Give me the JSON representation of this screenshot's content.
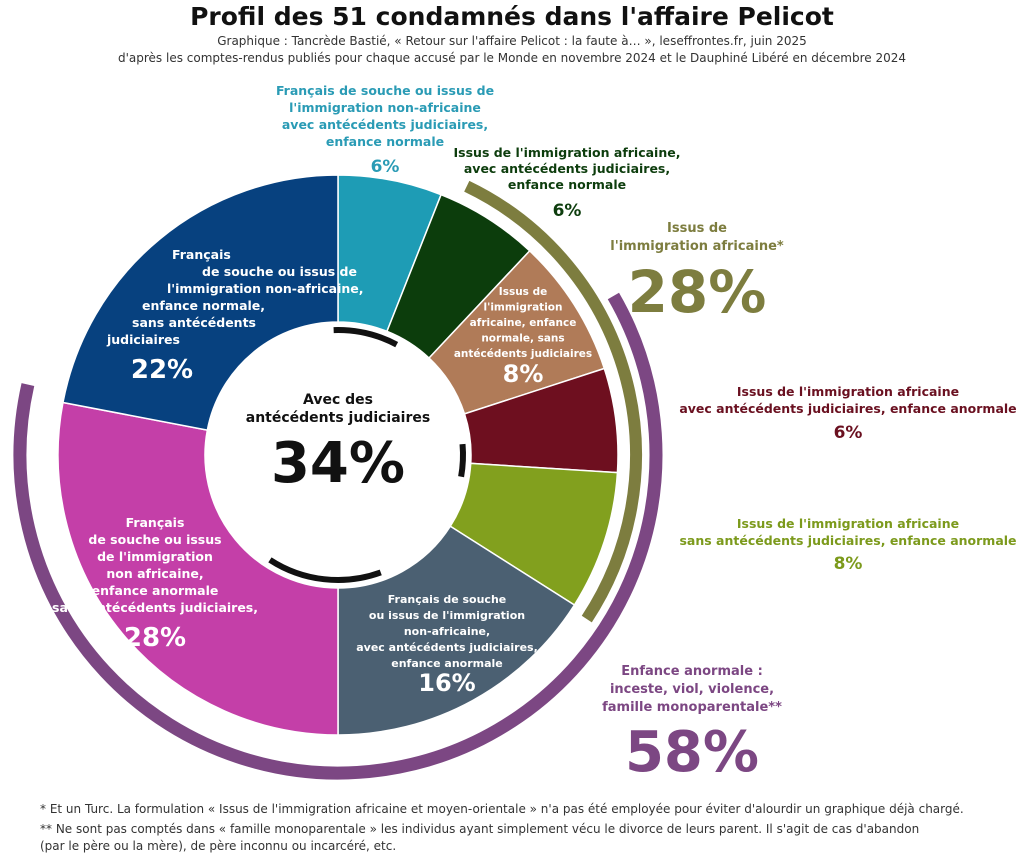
{
  "header": {
    "title": "Profil des 51 condamnés dans l'affaire Pelicot",
    "subtitle_1": "Graphique : Tancrède Bastié, « Retour sur l'affaire Pelicot : la faute à… », leseffrontes.fr, juin 2025",
    "subtitle_2": "d'après les comptes-rendus publiés pour chaque accusé par le Monde en novembre 2024 et le Dauphiné Libéré en décembre 2024"
  },
  "chart_data": {
    "type": "pie",
    "variant": "donut",
    "start_angle_deg": 0,
    "direction": "clockwise",
    "slices": [
      {
        "label": "Français de souche ou issus de l'immigration non-africaine avec antécédents judiciaires, enfance normale",
        "label_lines": [
          "Français de souche ou issus de",
          "l'immigration non-africaine",
          "avec antécédents judiciaires,",
          "enfance normale"
        ],
        "value": 6,
        "value_label": "6%",
        "color": "#1e9cb5"
      },
      {
        "label": "Issus de l'immigration africaine, avec antécédents judiciaires, enfance normale",
        "label_lines": [
          "Issus de l'immigration africaine,",
          "avec antécédents judiciaires,",
          "enfance normale"
        ],
        "value": 6,
        "value_label": "6%",
        "color": "#0c3d0c"
      },
      {
        "label": "Issus de l'immigration africaine, enfance normale, sans antécédents judiciaires",
        "label_lines": [
          "Issus de",
          "l'immigration",
          "africaine, enfance",
          "normale, sans",
          "antécédents judiciaires"
        ],
        "value": 8,
        "value_label": "8%",
        "color": "#b07b58"
      },
      {
        "label": "Issus de l'immigration africaine avec antécédents judiciaires, enfance anormale",
        "label_lines": [
          "Issus de l'immigration africaine",
          "avec antécédents judiciaires, enfance anormale"
        ],
        "value": 6,
        "value_label": "6%",
        "color": "#6e0f1f"
      },
      {
        "label": "Issus de l'immigration africaine sans antécédents judiciaires, enfance anormale",
        "label_lines": [
          "Issus de l'immigration africaine",
          "sans antécédents judiciaires, enfance anormale"
        ],
        "value": 8,
        "value_label": "8%",
        "color": "#82a01e"
      },
      {
        "label": "Français de souche ou issus de l'immigration non-africaine, avec antécédents judiciaires, enfance anormale",
        "label_lines": [
          "Français de souche",
          "ou issus de l'immigration",
          "non-africaine,",
          "avec antécédents judiciaires,",
          "enfance anormale"
        ],
        "value": 16,
        "value_label": "16%",
        "color": "#4b6072"
      },
      {
        "label": "Français de souche ou issus de l'immigration non africaine, enfance anormale sans antécédents judiciaires,",
        "label_lines": [
          "Français",
          "de souche ou issus",
          "de l'immigration",
          "non africaine,",
          "enfance anormale",
          "sans antécédents judiciaires,"
        ],
        "value": 28,
        "value_label": "28%",
        "color": "#c43fa8"
      },
      {
        "label": "Français de souche ou issus de l'immigration non-africaine, enfance normale, sans antécédents judiciaires",
        "label_lines": [
          "Français",
          "de souche ou issus de",
          "l'immigration non-africaine,",
          "enfance normale,",
          "sans antécédents",
          "judiciaires"
        ],
        "value": 22,
        "value_label": "22%",
        "color": "#07417f"
      }
    ],
    "center": {
      "label_lines": [
        "Avec des",
        "antécédents judiciaires"
      ],
      "value": 34,
      "value_label": "34%"
    },
    "groups": [
      {
        "label_lines": [
          "Issus de",
          "l'immigration africaine*"
        ],
        "value": 28,
        "value_label": "28%",
        "color": "#7d7d3f",
        "slices": [
          1,
          2,
          3,
          4
        ]
      },
      {
        "label_lines": [
          "Enfance anormale :",
          "inceste, viol, violence,",
          "famille monoparentale**"
        ],
        "value": 58,
        "value_label": "58%",
        "color": "#7c4783",
        "slices": [
          3,
          4,
          5,
          6
        ]
      }
    ]
  },
  "footnotes": {
    "note_1": "* Et un Turc. La formulation « Issus de l'immigration africaine et moyen-orientale » n'a pas été employée pour éviter d'alourdir un graphique déjà chargé.",
    "note_2a": "** Ne sont pas comptés dans « famille monoparentale » les individus ayant simplement vécu le divorce de leurs parent. Il s'agit de cas d'abandon",
    "note_2b": "(par le père ou la mère), de père inconnu ou incarcéré, etc."
  }
}
